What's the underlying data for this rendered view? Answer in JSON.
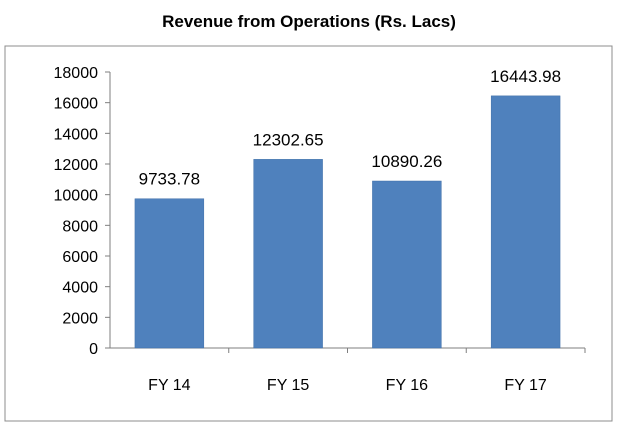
{
  "chart_data": {
    "type": "bar",
    "title": "Revenue from Operations (Rs. Lacs)",
    "xlabel": "",
    "ylabel": "",
    "categories": [
      "FY 14",
      "FY 15",
      "FY 16",
      "FY 17"
    ],
    "values": [
      9733.78,
      12302.65,
      10890.26,
      16443.98
    ],
    "data_labels": [
      "9733.78",
      "12302.65",
      "10890.26",
      "16443.98"
    ],
    "ylim": [
      0,
      18000
    ],
    "y_ticks": [
      0,
      2000,
      4000,
      6000,
      8000,
      10000,
      12000,
      14000,
      16000,
      18000
    ],
    "grid": false,
    "legend": "none",
    "bar_color": "#4f81bd",
    "bar_edge_color": "#3f6fa8",
    "frame_color": "#7f7f7f"
  }
}
